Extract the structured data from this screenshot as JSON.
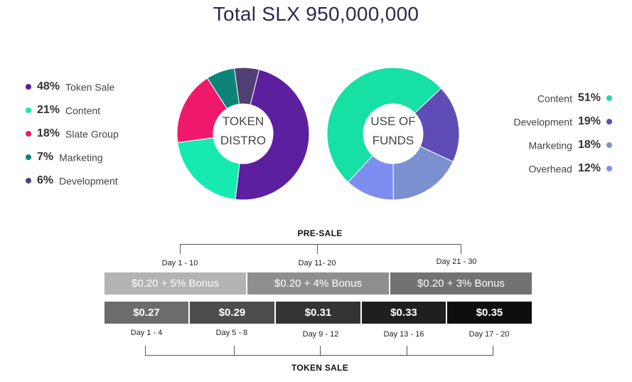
{
  "title": "Total SLX 950,000,000",
  "chart_data": [
    {
      "type": "pie",
      "title": "TOKEN DISTRO",
      "center_label": [
        "TOKEN",
        "DISTRO"
      ],
      "categories": [
        "Token Sale",
        "Content",
        "Slate Group",
        "Marketing",
        "Development"
      ],
      "values": [
        48,
        21,
        18,
        7,
        6
      ],
      "colors": [
        "#5b1fa0",
        "#17eab0",
        "#f0186a",
        "#0c8479",
        "#4f3f72"
      ]
    },
    {
      "type": "pie",
      "title": "USE OF FUNDS",
      "center_label": [
        "USE OF",
        "FUNDS"
      ],
      "categories": [
        "Content",
        "Development",
        "Marketing",
        "Overhead"
      ],
      "values": [
        51,
        19,
        18,
        12
      ],
      "colors": [
        "#17e0a5",
        "#5f4cb4",
        "#7b90d0",
        "#7e8ef0"
      ]
    }
  ],
  "legend_left": [
    {
      "pct": "48%",
      "label": "Token Sale",
      "color": "#5b1fa0"
    },
    {
      "pct": "21%",
      "label": "Content",
      "color": "#17eab0"
    },
    {
      "pct": "18%",
      "label": "Slate Group",
      "color": "#f0186a"
    },
    {
      "pct": "7%",
      "label": "Marketing",
      "color": "#0c8479"
    },
    {
      "pct": "6%",
      "label": "Development",
      "color": "#4f3f72"
    }
  ],
  "legend_right": [
    {
      "pct": "51%",
      "label": "Content",
      "color": "#17e0a5"
    },
    {
      "pct": "19%",
      "label": "Development",
      "color": "#5f4cb4"
    },
    {
      "pct": "18%",
      "label": "Marketing",
      "color": "#7b90d0"
    },
    {
      "pct": "12%",
      "label": "Overhead",
      "color": "#7e8ef0"
    }
  ],
  "presale": {
    "title": "PRE-SALE",
    "phases": [
      {
        "day": "Day 1 - 10",
        "price": "$0.20 + 5% Bonus",
        "color": "#b3b3b3"
      },
      {
        "day": "Day 11- 20",
        "price": "$0.20 + 4% Bonus",
        "color": "#8f8f8f"
      },
      {
        "day": "Day 21 - 30",
        "price": "$0.20 + 3% Bonus",
        "color": "#727272"
      }
    ]
  },
  "token_sale": {
    "title": "TOKEN SALE",
    "phases": [
      {
        "day": "Day 1 - 4",
        "price": "$0.27",
        "color": "#6c6c6c"
      },
      {
        "day": "Day 5 - 8",
        "price": "$0.29",
        "color": "#4c4c4c"
      },
      {
        "day": "Day 9 - 12",
        "price": "$0.31",
        "color": "#333333"
      },
      {
        "day": "Day 13 - 16",
        "price": "$0.33",
        "color": "#1f1f1f"
      },
      {
        "day": "Day 17 - 20",
        "price": "$0.35",
        "color": "#0e0e0e"
      }
    ]
  }
}
